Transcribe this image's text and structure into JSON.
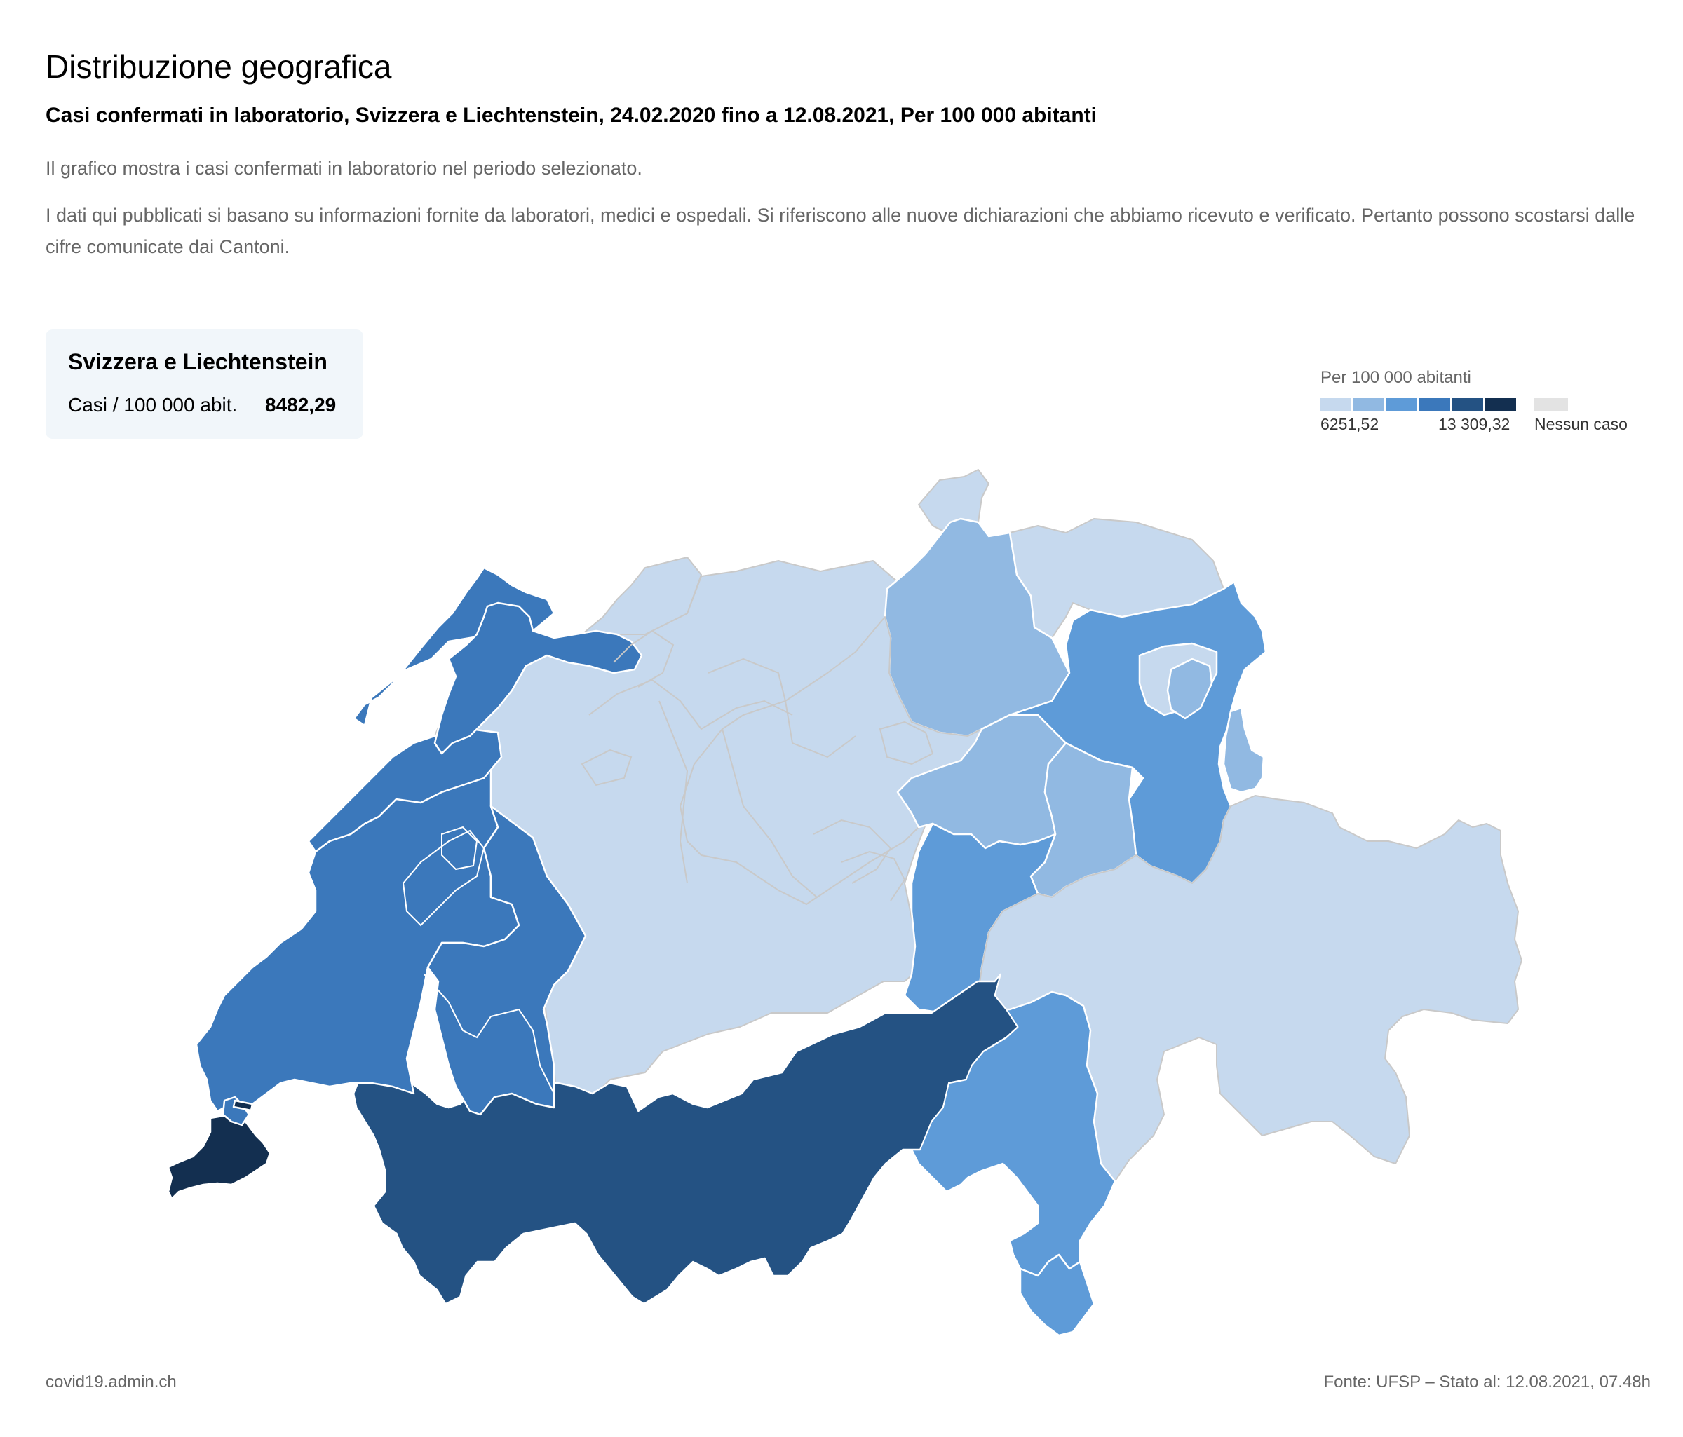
{
  "header": {
    "title": "Distribuzione geografica",
    "subtitle": "Casi confermati in laboratorio, Svizzera e Liechtenstein, 24.02.2020 fino a 12.08.2021, Per 100 000 abitanti",
    "description_1": "Il grafico mostra i casi confermati in laboratorio nel periodo selezionato.",
    "description_2": "I dati qui pubblicati si basano su informazioni fornite da laboratori, medici e ospedali. Si riferiscono alle nuove dichiarazioni che abbiamo ricevuto e verificato. Pertanto possono scostarsi dalle cifre comunicate dai Cantoni."
  },
  "summary_card": {
    "title": "Svizzera e Liechtenstein",
    "label": "Casi / 100 000 abit.",
    "value": "8482,29"
  },
  "legend": {
    "title": "Per 100 000 abitanti",
    "min_label": "6251,52",
    "max_label": "13 309,32",
    "no_case_label": "Nessun caso",
    "colors": [
      "#c6d9ee",
      "#91b9e2",
      "#5e9bd8",
      "#3b78bb",
      "#245283",
      "#132f50"
    ],
    "no_case_color": "#e3e3e3"
  },
  "footer": {
    "source_site": "covid19.admin.ch",
    "source_note": "Fonte: UFSP – Stato al: 12.08.2021, 07.48h"
  },
  "chart_data": {
    "type": "choropleth",
    "scale_min": 6251.52,
    "scale_max": 13309.32,
    "classes": 6,
    "regions": [
      {
        "region": "Ginevra",
        "class": 6
      },
      {
        "region": "Vallese",
        "class": 5
      },
      {
        "region": "Vaud",
        "class": 4
      },
      {
        "region": "Neuchâtel",
        "class": 4
      },
      {
        "region": "Giura",
        "class": 4
      },
      {
        "region": "Friburgo",
        "class": 4
      },
      {
        "region": "Ticino",
        "class": 3
      },
      {
        "region": "Uri",
        "class": 3
      },
      {
        "region": "San Gallo",
        "class": 3
      },
      {
        "region": "Zurigo",
        "class": 2
      },
      {
        "region": "Svitto",
        "class": 2
      },
      {
        "region": "Glarona",
        "class": 2
      },
      {
        "region": "Appenzello Interno",
        "class": 2
      },
      {
        "region": "Liechtenstein",
        "class": 2
      },
      {
        "region": "Berna",
        "class": 1
      },
      {
        "region": "Lucerna",
        "class": 1
      },
      {
        "region": "Argovia",
        "class": 1
      },
      {
        "region": "Soletta",
        "class": 1
      },
      {
        "region": "Basilea",
        "class": 1
      },
      {
        "region": "Sciaffusa",
        "class": 1
      },
      {
        "region": "Turgovia",
        "class": 1
      },
      {
        "region": "Grigioni",
        "class": 1
      },
      {
        "region": "Zugo",
        "class": 1
      },
      {
        "region": "Obvaldo",
        "class": 1
      },
      {
        "region": "Nidvaldo",
        "class": 1
      },
      {
        "region": "Appenzello Esterno",
        "class": 1
      }
    ]
  }
}
